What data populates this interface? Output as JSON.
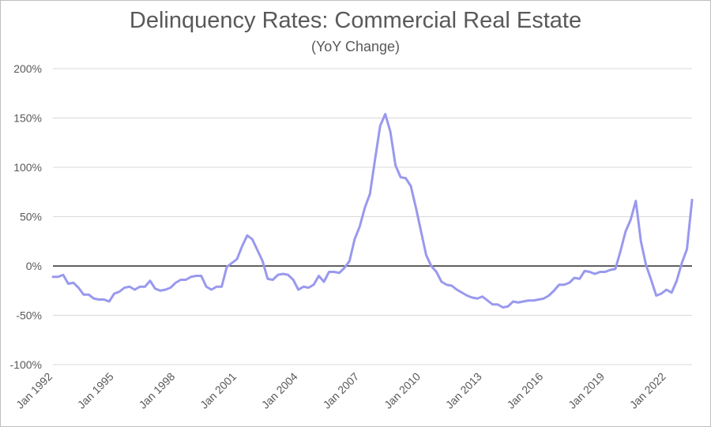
{
  "chart_data": {
    "type": "line",
    "title": "Delinquency Rates: Commercial Real Estate",
    "subtitle": "(YoY Change)",
    "xlabel": "",
    "ylabel": "",
    "ylim": [
      -100,
      200
    ],
    "y_ticks": [
      200,
      150,
      100,
      50,
      0,
      -50,
      -100
    ],
    "y_tick_labels": [
      "200%",
      "150%",
      "100%",
      "50%",
      "0%",
      "-50%",
      "-100%"
    ],
    "x_tick_labels": [
      "Jan 1992",
      "Jan 1995",
      "Jan 1998",
      "Jan 2001",
      "Jan 2004",
      "Jan 2007",
      "Jan 2010",
      "Jan 2013",
      "Jan 2016",
      "Jan 2019",
      "Jan 2022"
    ],
    "grid": "horizontal",
    "line_color": "#9999ee",
    "series": [
      {
        "x_start": "1992-01",
        "frequency": "quarterly",
        "values": [
          -11,
          -11,
          -9,
          -18,
          -17,
          -22,
          -29,
          -29,
          -33,
          -34,
          -34,
          -36,
          -28,
          -26,
          -22,
          -21,
          -24,
          -21,
          -21,
          -15,
          -23,
          -25,
          -24,
          -22,
          -17,
          -14,
          -14,
          -11,
          -10,
          -10,
          -21,
          -24,
          -21,
          -21,
          -1,
          3,
          7,
          20,
          31,
          27,
          16,
          5,
          -13,
          -14,
          -9,
          -8,
          -9,
          -14,
          -24,
          -21,
          -22,
          -19,
          -10,
          -16,
          -6,
          -6,
          -7,
          -2,
          5,
          27,
          40,
          59,
          73,
          108,
          142,
          154,
          136,
          102,
          90,
          89,
          81,
          59,
          35,
          11,
          0,
          -6,
          -16,
          -19,
          -20,
          -24,
          -27,
          -30,
          -32,
          -33,
          -31,
          -35,
          -39,
          -39,
          -42,
          -41,
          -36,
          -37,
          -36,
          -35,
          -35,
          -34,
          -33,
          -30,
          -25,
          -19,
          -19,
          -17,
          -12,
          -13,
          -5,
          -6,
          -8,
          -6,
          -6,
          -4,
          -3,
          15,
          35,
          47,
          66,
          25,
          1,
          -14,
          -30,
          -28,
          -24,
          -27,
          -15,
          3,
          17,
          67
        ]
      }
    ]
  }
}
